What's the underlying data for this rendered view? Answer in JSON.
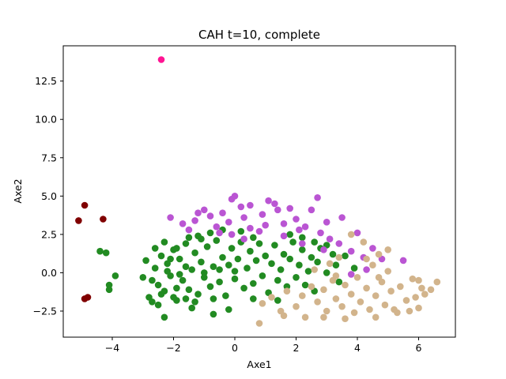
{
  "chart_data": {
    "type": "scatter",
    "title": "CAH t=10, complete",
    "xlabel": "Axe1",
    "ylabel": "Axe2",
    "xlim": [
      -5.6,
      7.2
    ],
    "ylim": [
      -4.2,
      14.8
    ],
    "xticks": [
      -4,
      -2,
      0,
      2,
      4,
      6
    ],
    "xtick_labels": [
      "−4",
      "−2",
      "0",
      "2",
      "4",
      "6"
    ],
    "yticks": [
      -2.5,
      0.0,
      2.5,
      5.0,
      7.5,
      10.0,
      12.5
    ],
    "ytick_labels": [
      "−2.5",
      "0.0",
      "2.5",
      "5.0",
      "7.5",
      "10.0",
      "12.5"
    ],
    "grid": false,
    "series": [
      {
        "color": "#228B22",
        "points": [
          [
            -2.8,
            -1.6
          ],
          [
            -2.6,
            0.3
          ],
          [
            -2.5,
            -0.8
          ],
          [
            -2.4,
            1.1
          ],
          [
            -2.3,
            -1.2
          ],
          [
            -2.2,
            0.6
          ],
          [
            -2.1,
            -0.2
          ],
          [
            -2.0,
            1.5
          ],
          [
            -1.9,
            -1.8
          ],
          [
            -1.8,
            0.9
          ],
          [
            -1.7,
            -0.5
          ],
          [
            -1.6,
            1.9
          ],
          [
            -1.5,
            -1.1
          ],
          [
            -1.4,
            0.2
          ],
          [
            -1.3,
            1.3
          ],
          [
            -1.2,
            -1.4
          ],
          [
            -1.1,
            0.7
          ],
          [
            -1.0,
            -0.3
          ],
          [
            -0.9,
            1.7
          ],
          [
            -0.8,
            -0.9
          ],
          [
            -0.7,
            0.4
          ],
          [
            -0.6,
            2.1
          ],
          [
            -0.5,
            -0.6
          ],
          [
            -0.4,
            1.0
          ],
          [
            -0.3,
            -1.5
          ],
          [
            -0.2,
            0.5
          ],
          [
            -0.1,
            1.6
          ],
          [
            0.0,
            -0.4
          ],
          [
            0.1,
            0.9
          ],
          [
            0.2,
            2.0
          ],
          [
            0.3,
            -1.0
          ],
          [
            0.4,
            0.3
          ],
          [
            0.5,
            1.4
          ],
          [
            0.6,
            -0.7
          ],
          [
            0.7,
            0.8
          ],
          [
            0.8,
            1.9
          ],
          [
            0.9,
            -0.2
          ],
          [
            1.0,
            1.1
          ],
          [
            1.1,
            -1.3
          ],
          [
            1.2,
            0.6
          ],
          [
            1.3,
            1.8
          ],
          [
            1.4,
            -0.5
          ],
          [
            1.5,
            0.2
          ],
          [
            1.6,
            1.2
          ],
          [
            1.7,
            -0.9
          ],
          [
            1.8,
            0.9
          ],
          [
            1.9,
            2.0
          ],
          [
            2.0,
            -0.3
          ],
          [
            2.1,
            0.5
          ],
          [
            2.2,
            1.5
          ],
          [
            2.3,
            -0.8
          ],
          [
            2.4,
            0.1
          ],
          [
            2.5,
            1.0
          ],
          [
            2.6,
            -1.2
          ],
          [
            2.7,
            0.7
          ],
          [
            2.8,
            1.6
          ],
          [
            3.0,
            0.0
          ],
          [
            3.2,
            1.2
          ],
          [
            3.4,
            -0.6
          ],
          [
            -2.9,
            0.8
          ],
          [
            -2.7,
            -1.9
          ],
          [
            -2.3,
            2.0
          ],
          [
            -1.9,
            1.6
          ],
          [
            -1.5,
            2.3
          ],
          [
            -1.1,
            2.2
          ],
          [
            -2.5,
            -2.1
          ],
          [
            -2.0,
            -1.6
          ],
          [
            -1.6,
            -1.7
          ],
          [
            -1.2,
            2.4
          ],
          [
            -0.8,
            2.6
          ],
          [
            -0.4,
            2.8
          ],
          [
            0.2,
            2.7
          ],
          [
            0.6,
            2.3
          ],
          [
            -3.0,
            -0.3
          ],
          [
            -2.6,
            1.6
          ],
          [
            -1.3,
            -1.9
          ],
          [
            -0.7,
            -1.7
          ],
          [
            -4.4,
            1.4
          ],
          [
            -4.2,
            1.3
          ],
          [
            -4.1,
            -0.8
          ],
          [
            -4.1,
            -1.1
          ],
          [
            -3.9,
            -0.2
          ],
          [
            -2.3,
            -2.9
          ],
          [
            -1.4,
            -2.3
          ],
          [
            -0.7,
            -2.7
          ],
          [
            -0.2,
            -2.4
          ],
          [
            0.6,
            -1.7
          ],
          [
            1.4,
            -1.8
          ],
          [
            1.8,
            2.5
          ],
          [
            2.2,
            2.3
          ],
          [
            2.6,
            2.0
          ],
          [
            3.0,
            1.8
          ],
          [
            3.3,
            0.5
          ],
          [
            3.6,
            1.1
          ],
          [
            3.9,
            0.3
          ],
          [
            -1.8,
            -0.1
          ],
          [
            -2.2,
            0.1
          ],
          [
            -1.0,
            0.0
          ],
          [
            -0.5,
            0.2
          ],
          [
            0.0,
            0.1
          ],
          [
            -2.7,
            -0.5
          ],
          [
            -2.4,
            -1.4
          ],
          [
            -1.9,
            -1.0
          ],
          [
            -2.1,
            0.9
          ],
          [
            -1.6,
            0.4
          ]
        ]
      },
      {
        "color": "#BA55D3",
        "points": [
          [
            -1.7,
            3.2
          ],
          [
            -1.5,
            2.8
          ],
          [
            -1.3,
            3.4
          ],
          [
            -1.0,
            4.1
          ],
          [
            -0.8,
            3.7
          ],
          [
            -0.6,
            3.0
          ],
          [
            -0.4,
            3.9
          ],
          [
            -0.2,
            3.3
          ],
          [
            -0.1,
            4.8
          ],
          [
            0.0,
            5.0
          ],
          [
            0.2,
            4.3
          ],
          [
            0.3,
            3.6
          ],
          [
            0.5,
            2.9
          ],
          [
            0.5,
            4.4
          ],
          [
            0.9,
            3.8
          ],
          [
            1.0,
            3.1
          ],
          [
            1.1,
            4.7
          ],
          [
            1.3,
            4.5
          ],
          [
            1.4,
            4.1
          ],
          [
            1.6,
            3.2
          ],
          [
            1.8,
            4.2
          ],
          [
            2.0,
            3.5
          ],
          [
            2.1,
            2.8
          ],
          [
            2.3,
            3.0
          ],
          [
            2.5,
            4.1
          ],
          [
            2.7,
            4.9
          ],
          [
            2.8,
            2.6
          ],
          [
            3.0,
            3.3
          ],
          [
            3.1,
            2.2
          ],
          [
            3.4,
            1.9
          ],
          [
            3.5,
            3.6
          ],
          [
            3.8,
            1.4
          ],
          [
            4.0,
            2.6
          ],
          [
            4.2,
            1.0
          ],
          [
            4.5,
            1.6
          ],
          [
            4.8,
            0.9
          ],
          [
            5.5,
            0.8
          ],
          [
            4.3,
            0.2
          ],
          [
            3.8,
            -0.1
          ],
          [
            -0.1,
            2.5
          ],
          [
            0.3,
            2.2
          ],
          [
            -0.5,
            2.6
          ],
          [
            -2.1,
            3.6
          ],
          [
            -1.2,
            3.9
          ],
          [
            0.8,
            2.7
          ],
          [
            1.6,
            2.4
          ],
          [
            2.2,
            1.9
          ],
          [
            2.9,
            1.5
          ]
        ]
      },
      {
        "color": "#D2B48C",
        "points": [
          [
            0.9,
            -2.0
          ],
          [
            1.2,
            -1.6
          ],
          [
            1.5,
            -2.5
          ],
          [
            1.7,
            -1.2
          ],
          [
            2.0,
            -2.2
          ],
          [
            2.2,
            -1.5
          ],
          [
            2.3,
            -2.9
          ],
          [
            2.5,
            -0.9
          ],
          [
            2.7,
            -1.9
          ],
          [
            2.9,
            -1.1
          ],
          [
            3.0,
            -2.5
          ],
          [
            3.2,
            -0.5
          ],
          [
            3.3,
            -1.7
          ],
          [
            3.5,
            -2.2
          ],
          [
            3.6,
            -0.8
          ],
          [
            3.8,
            -1.4
          ],
          [
            3.9,
            -2.6
          ],
          [
            4.0,
            -0.3
          ],
          [
            4.1,
            -1.9
          ],
          [
            4.3,
            -1.0
          ],
          [
            4.4,
            -2.4
          ],
          [
            4.5,
            0.5
          ],
          [
            4.6,
            -1.5
          ],
          [
            4.8,
            -0.6
          ],
          [
            4.9,
            -2.1
          ],
          [
            5.0,
            0.1
          ],
          [
            5.1,
            -1.2
          ],
          [
            5.3,
            -2.6
          ],
          [
            5.4,
            -0.9
          ],
          [
            5.6,
            -1.8
          ],
          [
            5.8,
            -0.4
          ],
          [
            5.9,
            -1.6
          ],
          [
            6.0,
            -2.3
          ],
          [
            6.1,
            -1.0
          ],
          [
            6.2,
            -1.4
          ],
          [
            6.6,
            -0.6
          ],
          [
            6.4,
            -1.1
          ],
          [
            6.0,
            -0.5
          ],
          [
            5.7,
            -2.5
          ],
          [
            5.0,
            1.5
          ],
          [
            4.7,
            1.2
          ],
          [
            4.2,
            2.0
          ],
          [
            3.8,
            2.5
          ],
          [
            3.4,
            1.0
          ],
          [
            2.9,
            -2.9
          ],
          [
            0.8,
            -3.3
          ],
          [
            1.6,
            -2.8
          ],
          [
            3.6,
            -3.0
          ],
          [
            4.6,
            -2.9
          ],
          [
            5.2,
            -2.4
          ],
          [
            2.6,
            0.2
          ],
          [
            3.1,
            0.6
          ],
          [
            4.3,
            0.9
          ],
          [
            4.7,
            -0.3
          ],
          [
            3.3,
            -0.2
          ]
        ]
      },
      {
        "color": "#800000",
        "points": [
          [
            -5.1,
            3.4
          ],
          [
            -4.9,
            4.4
          ],
          [
            -4.3,
            3.5
          ],
          [
            -4.9,
            -1.7
          ],
          [
            -4.8,
            -1.6
          ]
        ]
      },
      {
        "color": "#FF1493",
        "points": [
          [
            -2.4,
            13.9
          ]
        ]
      }
    ]
  }
}
